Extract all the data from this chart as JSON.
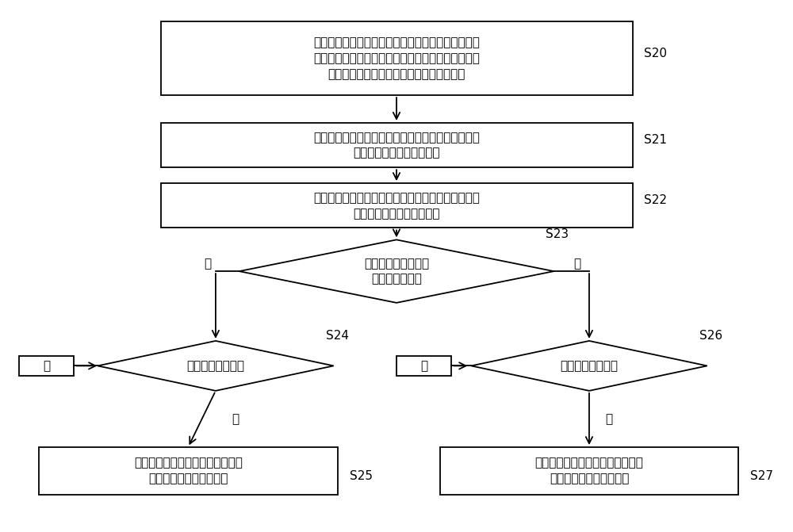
{
  "bg_color": "#ffffff",
  "box_color": "#ffffff",
  "box_edge_color": "#000000",
  "text_color": "#000000",
  "arrow_color": "#000000",
  "s20_text": "当检测到目标应用启动时，将所述目标应用的应用真\n身的信号确定为第一路信号的输入及将所述目标应用\n的应用分身的信号确定为第二路信号的输入",
  "s21_text": "将所述第一路信号输出至所述第一显示屏，将所述第\n二路信号输出在第二显示屏",
  "s22_text": "在所述第一显示屏上显示所述应用真身，在所述第二\n显示屏上显示所述应用分身",
  "s23_text": "当前使用的显示屏是\n否为所述第一屏",
  "s24_text": "是否触发切换条件",
  "s25_text": "将第二显示屏的输入信号切换为所\n述第一显示屏的输入信号",
  "s26_text": "是否触发切换条件",
  "s27_text": "将第一显示屏的输入信号切换为所\n述第二显示屏的输入信号",
  "yes_text": "是",
  "no_text": "否",
  "labels": [
    "S20",
    "S21",
    "S22",
    "S23",
    "S24",
    "S25",
    "S26",
    "S27"
  ]
}
